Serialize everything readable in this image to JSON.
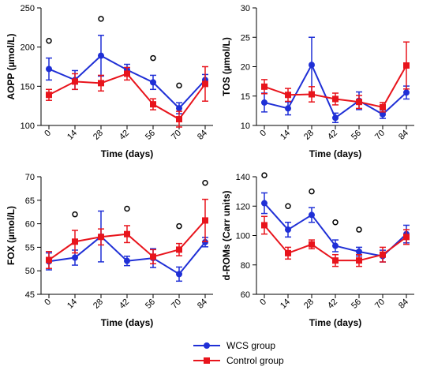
{
  "colors": {
    "wcs": "#1f2fd6",
    "control": "#e8141c"
  },
  "legend": {
    "wcs_label": "WCS group",
    "control_label": "Control group"
  },
  "chart_data": [
    {
      "type": "line",
      "xlabel": "Time (days)",
      "ylabel": "AOPP (µmol/L)",
      "x": [
        0,
        14,
        28,
        42,
        56,
        70,
        84
      ],
      "ylim": [
        100,
        250
      ],
      "yticks": [
        100,
        150,
        200,
        250
      ],
      "series": [
        {
          "name": "WCS group",
          "values": [
            172,
            158,
            189,
            171,
            155,
            122,
            158
          ],
          "err": [
            14,
            12,
            26,
            7,
            9,
            7,
            7
          ]
        },
        {
          "name": "Control group",
          "values": [
            139,
            156,
            154,
            166,
            127,
            108,
            153
          ],
          "err": [
            7,
            10,
            10,
            8,
            7,
            10,
            22
          ]
        }
      ],
      "markers": [
        {
          "x": 0,
          "y": 208
        },
        {
          "x": 28,
          "y": 236
        },
        {
          "x": 56,
          "y": 186
        },
        {
          "x": 70,
          "y": 151
        }
      ]
    },
    {
      "type": "line",
      "xlabel": "Time (days)",
      "ylabel": "TOS (µmol/L)",
      "x": [
        0,
        14,
        28,
        42,
        56,
        70,
        84
      ],
      "ylim": [
        10,
        30
      ],
      "yticks": [
        10,
        15,
        20,
        25,
        30
      ],
      "series": [
        {
          "name": "WCS group",
          "values": [
            13.9,
            12.9,
            20.3,
            11.3,
            14.2,
            11.9,
            15.6
          ],
          "err": [
            1.6,
            1.1,
            4.7,
            0.8,
            1.5,
            0.7,
            1.1
          ]
        },
        {
          "name": "Control group",
          "values": [
            16.6,
            15.2,
            15.3,
            14.5,
            14.0,
            13.1,
            20.2
          ],
          "err": [
            1.2,
            1.1,
            1.3,
            1.0,
            1.1,
            0.8,
            4.0
          ]
        }
      ],
      "markers": []
    },
    {
      "type": "line",
      "xlabel": "Time (days)",
      "ylabel": "FOX (µmol/L)",
      "x": [
        0,
        14,
        28,
        42,
        56,
        70,
        84
      ],
      "ylim": [
        45,
        70
      ],
      "yticks": [
        45,
        50,
        55,
        60,
        65,
        70
      ],
      "series": [
        {
          "name": "WCS group",
          "values": [
            52.0,
            52.8,
            57.3,
            52.1,
            52.7,
            49.3,
            56.1
          ],
          "err": [
            1.8,
            1.6,
            5.4,
            1.0,
            2.0,
            1.5,
            1.0
          ]
        },
        {
          "name": "Control group",
          "values": [
            52.3,
            56.2,
            57.2,
            57.8,
            53.0,
            54.5,
            60.7
          ],
          "err": [
            1.8,
            2.4,
            1.7,
            1.8,
            1.5,
            1.3,
            4.5
          ]
        }
      ],
      "markers": [
        {
          "x": 14,
          "y": 62
        },
        {
          "x": 42,
          "y": 63.2
        },
        {
          "x": 70,
          "y": 59.5
        },
        {
          "x": 84,
          "y": 68.7
        }
      ]
    },
    {
      "type": "line",
      "xlabel": "Time (days)",
      "ylabel": "d-ROMs (Carr units)",
      "x": [
        0,
        14,
        28,
        42,
        56,
        70,
        84
      ],
      "ylim": [
        60,
        140
      ],
      "yticks": [
        60,
        80,
        100,
        120,
        140
      ],
      "series": [
        {
          "name": "WCS group",
          "values": [
            122,
            104,
            114,
            93,
            89,
            86,
            101
          ],
          "err": [
            7,
            5,
            5,
            4,
            3,
            4,
            6
          ]
        },
        {
          "name": "Control group",
          "values": [
            107,
            88,
            94,
            83,
            83,
            87,
            99
          ],
          "err": [
            6,
            4,
            3,
            4,
            4,
            5,
            5
          ]
        }
      ],
      "markers": [
        {
          "x": 0,
          "y": 141
        },
        {
          "x": 14,
          "y": 120
        },
        {
          "x": 28,
          "y": 130
        },
        {
          "x": 42,
          "y": 109
        },
        {
          "x": 56,
          "y": 104
        }
      ]
    }
  ]
}
